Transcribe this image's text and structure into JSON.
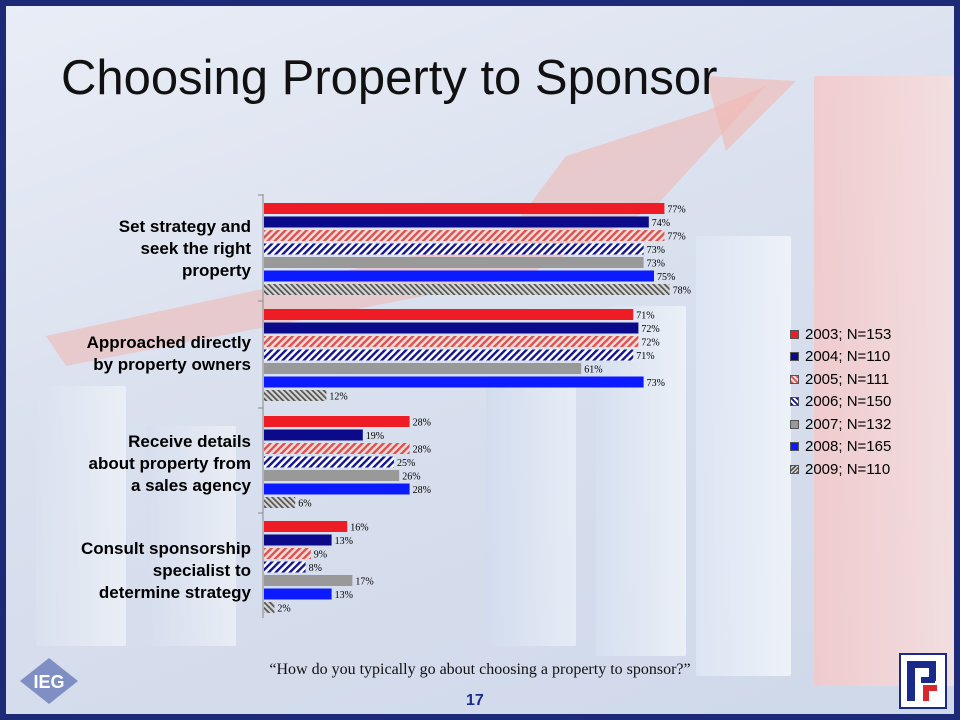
{
  "title": "Choosing Property to Sponsor",
  "question": "“How do you typically go about choosing a property to sponsor?”",
  "page_number": "17",
  "logos": {
    "left": "IEG",
    "right": "PR"
  },
  "colors": {
    "frame": "#1c2a78",
    "accent_red": "#ee1c25",
    "accent_navy": "#0a0a8a"
  },
  "chart_data": {
    "type": "bar",
    "orientation": "horizontal",
    "categories": [
      "Set strategy and seek the right property",
      "Approached directly by property owners",
      "Receive details about property from a sales agency",
      "Consult sponsorship specialist to determine strategy"
    ],
    "category_lines": [
      [
        "Set strategy and",
        "seek the right",
        "property"
      ],
      [
        "Approached directly",
        "by property owners"
      ],
      [
        "Receive details",
        "about property from",
        "a sales agency"
      ],
      [
        "Consult sponsorship",
        "specialist to",
        "determine strategy"
      ]
    ],
    "series": [
      {
        "name": "2003; N=153",
        "values": [
          77,
          71,
          28,
          16
        ],
        "color": "#ee1c25",
        "pattern": "solid"
      },
      {
        "name": "2004; N=110",
        "values": [
          74,
          72,
          19,
          13
        ],
        "color": "#0a0a8a",
        "pattern": "solid"
      },
      {
        "name": "2005; N=111",
        "values": [
          77,
          72,
          28,
          9
        ],
        "color": "#d9534f",
        "pattern": "hatch-red"
      },
      {
        "name": "2006; N=150",
        "values": [
          73,
          71,
          25,
          8
        ],
        "color": "#14148c",
        "pattern": "hatch-navy"
      },
      {
        "name": "2007; N=132",
        "values": [
          73,
          61,
          26,
          17
        ],
        "color": "#999999",
        "pattern": "solid"
      },
      {
        "name": "2008; N=165",
        "values": [
          75,
          73,
          28,
          13
        ],
        "color": "#0b1aff",
        "pattern": "solid"
      },
      {
        "name": "2009; N=110",
        "values": [
          78,
          12,
          6,
          2
        ],
        "color": "#666666",
        "pattern": "hatch-gray"
      }
    ],
    "value_suffix": "%",
    "xlim": [
      0,
      100
    ],
    "legend_position": "right",
    "grid": false
  }
}
